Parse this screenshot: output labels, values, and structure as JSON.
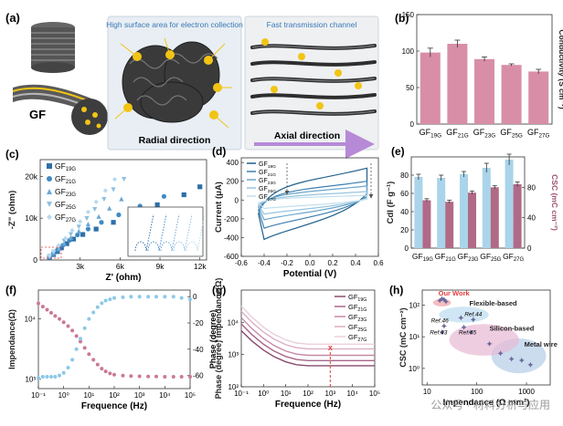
{
  "watermark": "公众号 · 材料分析与应用",
  "panel_a": {
    "label": "(a)",
    "fiber_label": "GF",
    "box1_title": "High surface area for electron collection",
    "box1_caption": "Radial direction",
    "box2_title": "Fast transmission channel",
    "box2_caption": "Axial direction",
    "electron_symbol": "e⁻",
    "colors": {
      "fiber_gray": "#4a4a4a",
      "electron": "#f2c414",
      "box_fill": "#e8eef3",
      "title_blue": "#3b78b8",
      "arrow_purple": "#b68ad6"
    }
  },
  "chart_data": [
    {
      "panel": "(b)",
      "type": "bar",
      "categories": [
        "GF19G",
        "GF21G",
        "GF23G",
        "GF25G",
        "GF27G"
      ],
      "category_labels": [
        {
          "base": "GF",
          "sub": "19G"
        },
        {
          "base": "GF",
          "sub": "21G"
        },
        {
          "base": "GF",
          "sub": "23G"
        },
        {
          "base": "GF",
          "sub": "25G"
        },
        {
          "base": "GF",
          "sub": "27G"
        }
      ],
      "values": [
        98,
        110,
        89,
        81,
        72
      ],
      "errors": [
        6,
        5,
        3,
        1.5,
        3
      ],
      "ylabel": "Conductivity (S cm⁻¹)",
      "ylim": [
        0,
        150
      ],
      "yticks": [
        0,
        50,
        100,
        150
      ],
      "color": "#d88ea6"
    },
    {
      "panel": "(c)",
      "type": "scatter",
      "xlabel": "Z' (ohm)",
      "ylabel": "-Z\" (ohm)",
      "xlim": [
        0,
        12500
      ],
      "ylim": [
        0,
        24000
      ],
      "xticks": [
        {
          "v": 3000,
          "t": "3k"
        },
        {
          "v": 6000,
          "t": "6k"
        },
        {
          "v": 9000,
          "t": "9k"
        },
        {
          "v": 12000,
          "t": "12k"
        }
      ],
      "yticks": [
        {
          "v": 0,
          "t": "0"
        },
        {
          "v": 10000,
          "t": "10k"
        },
        {
          "v": 20000,
          "t": "20k"
        }
      ],
      "series": [
        {
          "name": "GF19G",
          "sub": "19G",
          "marker": "square",
          "color": "#2f6fa8",
          "points": [
            [
              700,
              600
            ],
            [
              1000,
              1300
            ],
            [
              1300,
              2000
            ],
            [
              1600,
              2900
            ],
            [
              2000,
              3900
            ],
            [
              2500,
              5000
            ],
            [
              3200,
              6100
            ],
            [
              4200,
              7400
            ],
            [
              5500,
              9000
            ],
            [
              7000,
              11000
            ],
            [
              8800,
              13200
            ],
            [
              10800,
              15600
            ],
            [
              12000,
              17500
            ]
          ]
        },
        {
          "name": "GF21G",
          "sub": "21G",
          "marker": "circle",
          "color": "#3f8bc4",
          "points": [
            [
              700,
              700
            ],
            [
              1000,
              1500
            ],
            [
              1300,
              2400
            ],
            [
              1700,
              3500
            ],
            [
              2200,
              4700
            ],
            [
              2800,
              6000
            ],
            [
              3600,
              7400
            ],
            [
              4600,
              9000
            ],
            [
              5900,
              10800
            ],
            [
              7500,
              12900
            ],
            [
              9300,
              15200
            ]
          ]
        },
        {
          "name": "GF23G",
          "sub": "23G",
          "marker": "triangle",
          "color": "#6aa6d4",
          "points": [
            [
              700,
              800
            ],
            [
              1000,
              1700
            ],
            [
              1400,
              2800
            ],
            [
              1800,
              4000
            ],
            [
              2300,
              5400
            ],
            [
              2900,
              6900
            ],
            [
              3600,
              8600
            ],
            [
              4400,
              10400
            ],
            [
              5200,
              12400
            ],
            [
              6100,
              14600
            ]
          ]
        },
        {
          "name": "GF25G",
          "sub": "25G",
          "marker": "triangle-down",
          "color": "#8fbfe0",
          "points": [
            [
              700,
              900
            ],
            [
              1000,
              1900
            ],
            [
              1400,
              3100
            ],
            [
              1800,
              4500
            ],
            [
              2300,
              6100
            ],
            [
              2900,
              7900
            ],
            [
              3500,
              9900
            ],
            [
              4100,
              12100
            ],
            [
              4800,
              14500
            ],
            [
              5500,
              16800
            ],
            [
              6300,
              19300
            ]
          ]
        },
        {
          "name": "GF27G",
          "sub": "27G",
          "marker": "diamond",
          "color": "#b7d8ee",
          "points": [
            [
              700,
              1000
            ],
            [
              1000,
              2100
            ],
            [
              1400,
              3500
            ],
            [
              1900,
              5200
            ],
            [
              2400,
              7100
            ],
            [
              3000,
              9200
            ],
            [
              3600,
              11500
            ],
            [
              4200,
              13900
            ],
            [
              4900,
              16600
            ],
            [
              5600,
              19300
            ]
          ]
        }
      ],
      "legend_position": "top-left",
      "inset": "zoomed semicircle region, bottom-right"
    },
    {
      "panel": "(d)",
      "type": "line",
      "xlabel": "Potential (V)",
      "ylabel": "Current (μA)",
      "xlim": [
        -0.6,
        0.6
      ],
      "ylim": [
        -600,
        450
      ],
      "xticks": [
        -0.6,
        -0.4,
        -0.2,
        0.0,
        0.2,
        0.4,
        0.6
      ],
      "yticks": [
        -600,
        -400,
        -200,
        0,
        200,
        400
      ],
      "series": [
        {
          "name": "GF19G",
          "sub": "19G",
          "color": "#1f5f8b",
          "top": 340,
          "bottom": -420
        },
        {
          "name": "GF21G",
          "sub": "21G",
          "color": "#3d7fb0",
          "top": 200,
          "bottom": -300
        },
        {
          "name": "GF23G",
          "sub": "23G",
          "color": "#6aa6cc",
          "top": 150,
          "bottom": -210
        },
        {
          "name": "GF25G",
          "sub": "25G",
          "color": "#96c4de",
          "top": 90,
          "bottom": -150
        },
        {
          "name": "GF27G",
          "sub": "27G",
          "color": "#c3dfee",
          "top": 50,
          "bottom": -90
        }
      ],
      "legend_position": "top-left"
    },
    {
      "panel": "(e)",
      "type": "bar",
      "categories": [
        "GF19G",
        "GF21G",
        "GF23G",
        "GF25G",
        "GF27G"
      ],
      "category_labels": [
        {
          "base": "GF",
          "sub": "19G"
        },
        {
          "base": "GF",
          "sub": "21G"
        },
        {
          "base": "GF",
          "sub": "23G"
        },
        {
          "base": "GF",
          "sub": "25G"
        },
        {
          "base": "GF",
          "sub": "27G"
        }
      ],
      "series": [
        {
          "name": "CdI",
          "axis": "left",
          "color": "#a9d4ea",
          "values": [
            78,
            77,
            81,
            88,
            97
          ],
          "errors": [
            3,
            3,
            3,
            5,
            6
          ]
        },
        {
          "name": "CSC",
          "axis": "right",
          "color": "#b06a86",
          "values": [
            63,
            61,
            73,
            80,
            84
          ],
          "errors": [
            2,
            2,
            2,
            2,
            3
          ]
        }
      ],
      "ylabel_left": "CdI (F g⁻¹)",
      "ylabel_right": "CSC (mC cm⁻²)",
      "ylim_left": [
        0,
        100
      ],
      "ylim_right": [
        0,
        120
      ],
      "yticks_left": [
        0,
        20,
        40,
        60,
        80
      ],
      "yticks_right": [
        0,
        40,
        80
      ]
    },
    {
      "panel": "(f)",
      "type": "scatter",
      "xlabel": "Frequence (Hz)",
      "ylabel_left": "Impendance(Ω)",
      "ylabel_right": "Phase (degree)",
      "x_scale": "log",
      "xlim": [
        0.1,
        100000
      ],
      "ylim_left_log": [
        700,
        30000
      ],
      "ylim_right": [
        -70,
        5
      ],
      "xticks": [
        {
          "v": 0.1,
          "t": "10⁻¹"
        },
        {
          "v": 1,
          "t": "10⁰"
        },
        {
          "v": 10,
          "t": "10¹"
        },
        {
          "v": 100,
          "t": "10²"
        },
        {
          "v": 1000,
          "t": "10³"
        },
        {
          "v": 10000,
          "t": "10⁴"
        },
        {
          "v": 100000,
          "t": "10⁵"
        }
      ],
      "yticks_left": [
        {
          "v": 1000,
          "t": "10³"
        },
        {
          "v": 10000,
          "t": "10⁴"
        }
      ],
      "yticks_right": [
        0,
        -20,
        -40,
        -60
      ],
      "series": [
        {
          "name": "Impendance",
          "axis": "left",
          "color": "#c97a94",
          "points": [
            [
              0.1,
              18000
            ],
            [
              0.15,
              16000
            ],
            [
              0.22,
              14200
            ],
            [
              0.32,
              12600
            ],
            [
              0.46,
              11200
            ],
            [
              0.68,
              10000
            ],
            [
              1,
              8800
            ],
            [
              1.5,
              7600
            ],
            [
              2.2,
              6400
            ],
            [
              3.2,
              5200
            ],
            [
              4.6,
              4200
            ],
            [
              6.8,
              3300
            ],
            [
              10,
              2600
            ],
            [
              15,
              2100
            ],
            [
              22,
              1750
            ],
            [
              32,
              1500
            ],
            [
              46,
              1350
            ],
            [
              68,
              1250
            ],
            [
              100,
              1190
            ],
            [
              220,
              1150
            ],
            [
              460,
              1130
            ],
            [
              1000,
              1120
            ],
            [
              2200,
              1110
            ],
            [
              4600,
              1110
            ],
            [
              10000,
              1100
            ],
            [
              22000,
              1100
            ],
            [
              46000,
              1100
            ],
            [
              100000,
              1100
            ]
          ]
        },
        {
          "name": "Phase",
          "axis": "right",
          "color": "#8cc8e8",
          "points": [
            [
              0.1,
              -62
            ],
            [
              0.15,
              -61
            ],
            [
              0.22,
              -61
            ],
            [
              0.32,
              -61
            ],
            [
              0.46,
              -61
            ],
            [
              0.68,
              -60
            ],
            [
              1,
              -58
            ],
            [
              1.5,
              -54
            ],
            [
              2.2,
              -48
            ],
            [
              3.2,
              -40
            ],
            [
              4.6,
              -32
            ],
            [
              6.8,
              -24
            ],
            [
              10,
              -17
            ],
            [
              15,
              -12
            ],
            [
              22,
              -8
            ],
            [
              32,
              -5
            ],
            [
              46,
              -3
            ],
            [
              68,
              -2
            ],
            [
              100,
              -1
            ],
            [
              220,
              -0.5
            ],
            [
              460,
              0
            ],
            [
              1000,
              0
            ],
            [
              2200,
              0
            ],
            [
              4600,
              0
            ],
            [
              10000,
              0
            ],
            [
              22000,
              0
            ],
            [
              46000,
              -1
            ],
            [
              100000,
              -2
            ]
          ]
        }
      ]
    },
    {
      "panel": "(g)",
      "type": "line",
      "xlabel": "Frequence (Hz)",
      "ylabel": "Phase (degree) Impendance(Ω)",
      "x_scale": "log",
      "y_scale": "log",
      "xlim": [
        0.1,
        100000
      ],
      "ylim": [
        100,
        100000
      ],
      "xticks": [
        {
          "v": 0.1,
          "t": "10⁻¹"
        },
        {
          "v": 1,
          "t": "10⁰"
        },
        {
          "v": 10,
          "t": "10¹"
        },
        {
          "v": 100,
          "t": "10²"
        },
        {
          "v": 1000,
          "t": "10³"
        },
        {
          "v": 10000,
          "t": "10⁴"
        },
        {
          "v": 100000,
          "t": "10⁵"
        }
      ],
      "yticks": [
        {
          "v": 100,
          "t": "10²"
        },
        {
          "v": 1000,
          "t": "10³"
        },
        {
          "v": 10000,
          "t": "10⁴"
        }
      ],
      "series": [
        {
          "name": "GF19G",
          "sub": "19G",
          "color": "#8a4a6c",
          "start": 5500,
          "plateau": 450
        },
        {
          "name": "GF21G",
          "sub": "21G",
          "color": "#a8668a",
          "start": 9000,
          "plateau": 650
        },
        {
          "name": "GF23G",
          "sub": "23G",
          "color": "#c589a6",
          "start": 14000,
          "plateau": 950
        },
        {
          "name": "GF25G",
          "sub": "25G",
          "color": "#dbaec2",
          "start": 22000,
          "plateau": 1500
        },
        {
          "name": "GF27G",
          "sub": "27G",
          "color": "#ebcfdc",
          "start": 32000,
          "plateau": 2100
        }
      ],
      "marker_line_x": 1000,
      "marker_color": "#e04040",
      "marker_symbol": "x"
    },
    {
      "panel": "(h)",
      "type": "scatter",
      "xlabel": "Impendance (Ω mm²)",
      "ylabel": "CSC (mC cm⁻²)",
      "x_scale": "log",
      "y_scale": "log",
      "xlim": [
        8,
        3000
      ],
      "ylim": [
        0.3,
        300
      ],
      "xticks": [
        {
          "v": 10,
          "t": "10"
        },
        {
          "v": 100,
          "t": "100"
        },
        {
          "v": 1000,
          "t": "1000"
        }
      ],
      "yticks": [
        {
          "v": 1,
          "t": "10⁰"
        },
        {
          "v": 10,
          "t": "10¹"
        },
        {
          "v": 100,
          "t": "10²"
        }
      ],
      "regions": [
        {
          "name": "Our Work",
          "label_color": "#e04040",
          "fill": "#f0a0a8",
          "cx": 20,
          "cy": 120,
          "rx": 0.18,
          "ry": 0.12
        },
        {
          "name": "Flexible-based",
          "label_color": "#222222",
          "fill": "#bcdcf0",
          "cx": 55,
          "cy": 50,
          "rx": 0.5,
          "ry": 0.25
        },
        {
          "name": "Silicon-based",
          "label_color": "#222222",
          "fill": "#e8b8d4",
          "cx": 140,
          "cy": 8,
          "rx": 0.7,
          "ry": 0.5
        },
        {
          "name": "Metal wire",
          "label_color": "#222222",
          "fill": "#b6cde8",
          "cx": 700,
          "cy": 2.5,
          "rx": 0.55,
          "ry": 0.55
        }
      ],
      "annotations": [
        {
          "text": "Ref.44",
          "x": 85,
          "y": 45
        },
        {
          "text": "Ref.46",
          "x": 18,
          "y": 28
        },
        {
          "text": "Ref.43",
          "x": 17,
          "y": 12
        },
        {
          "text": "Ref.45",
          "x": 65,
          "y": 12
        }
      ],
      "points": [
        [
          20,
          160
        ],
        [
          22,
          150
        ],
        [
          24,
          130
        ],
        [
          18,
          140
        ],
        [
          85,
          35
        ],
        [
          48,
          40
        ],
        [
          22,
          22
        ],
        [
          20,
          14
        ],
        [
          55,
          20
        ],
        [
          75,
          14
        ],
        [
          180,
          6
        ],
        [
          300,
          3
        ],
        [
          500,
          2
        ],
        [
          800,
          1.8
        ],
        [
          1200,
          1.3
        ]
      ]
    }
  ]
}
